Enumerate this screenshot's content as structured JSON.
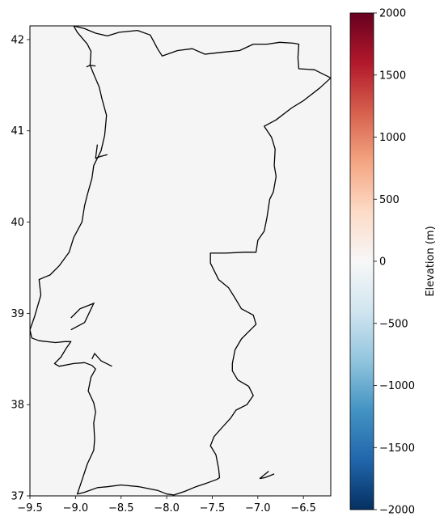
{
  "map": {
    "type": "geographic-outline",
    "background_color": "#f5f5f5",
    "outline_color": "#000000",
    "xlim": [
      -9.5,
      -6.2
    ],
    "ylim": [
      37.0,
      42.15
    ],
    "x_ticks": [
      -9.5,
      -9.0,
      -8.5,
      -8.0,
      -7.5,
      -7.0,
      -6.5
    ],
    "x_tick_labels": [
      "−9.5",
      "−9.0",
      "−8.5",
      "−8.0",
      "−7.5",
      "−7.0",
      "−6.5"
    ],
    "y_ticks": [
      37,
      38,
      39,
      40,
      41,
      42
    ],
    "y_tick_labels": [
      "37",
      "38",
      "39",
      "40",
      "41",
      "42"
    ],
    "coastline_border": [
      [
        -9.02,
        42.15
      ],
      [
        -8.98,
        42.08
      ],
      [
        -8.87,
        41.95
      ],
      [
        -8.83,
        41.87
      ],
      [
        -8.84,
        41.72
      ],
      [
        -8.8,
        41.62
      ],
      [
        -8.74,
        41.48
      ],
      [
        -8.71,
        41.35
      ],
      [
        -8.66,
        41.17
      ],
      [
        -8.67,
        41.06
      ],
      [
        -8.68,
        40.95
      ],
      [
        -8.72,
        40.78
      ],
      [
        -8.8,
        40.62
      ],
      [
        -8.82,
        40.48
      ],
      [
        -8.87,
        40.3
      ],
      [
        -8.9,
        40.18
      ],
      [
        -8.93,
        40.0
      ],
      [
        -9.02,
        39.83
      ],
      [
        -9.07,
        39.67
      ],
      [
        -9.18,
        39.52
      ],
      [
        -9.28,
        39.42
      ],
      [
        -9.33,
        39.4
      ],
      [
        -9.4,
        39.37
      ],
      [
        -9.38,
        39.2
      ],
      [
        -9.45,
        38.96
      ],
      [
        -9.5,
        38.82
      ],
      [
        -9.48,
        38.73
      ],
      [
        -9.4,
        38.7
      ],
      [
        -9.22,
        38.68
      ],
      [
        -9.12,
        38.69
      ],
      [
        -9.05,
        38.69
      ],
      [
        -9.1,
        38.62
      ],
      [
        -9.16,
        38.52
      ],
      [
        -9.23,
        38.45
      ],
      [
        -9.18,
        38.42
      ],
      [
        -9.02,
        38.45
      ],
      [
        -8.9,
        38.46
      ],
      [
        -8.82,
        38.43
      ],
      [
        -8.78,
        38.39
      ],
      [
        -8.83,
        38.3
      ],
      [
        -8.86,
        38.15
      ],
      [
        -8.8,
        38.02
      ],
      [
        -8.78,
        37.92
      ],
      [
        -8.8,
        37.8
      ],
      [
        -8.79,
        37.62
      ],
      [
        -8.8,
        37.5
      ],
      [
        -8.87,
        37.35
      ],
      [
        -8.92,
        37.2
      ],
      [
        -8.98,
        37.02
      ],
      [
        -8.9,
        37.04
      ],
      [
        -8.76,
        37.09
      ],
      [
        -8.65,
        37.1
      ],
      [
        -8.5,
        37.12
      ],
      [
        -8.3,
        37.1
      ],
      [
        -8.1,
        37.06
      ],
      [
        -8.0,
        37.02
      ],
      [
        -7.92,
        37.01
      ],
      [
        -7.8,
        37.05
      ],
      [
        -7.68,
        37.1
      ],
      [
        -7.56,
        37.14
      ],
      [
        -7.45,
        37.18
      ],
      [
        -7.42,
        37.2
      ],
      [
        -7.43,
        37.3
      ],
      [
        -7.46,
        37.45
      ],
      [
        -7.52,
        37.55
      ],
      [
        -7.48,
        37.65
      ],
      [
        -7.4,
        37.74
      ],
      [
        -7.3,
        37.85
      ],
      [
        -7.24,
        37.94
      ],
      [
        -7.12,
        38.0
      ],
      [
        -7.05,
        38.1
      ],
      [
        -7.1,
        38.2
      ],
      [
        -7.22,
        38.27
      ],
      [
        -7.28,
        38.37
      ],
      [
        -7.28,
        38.45
      ],
      [
        -7.25,
        38.6
      ],
      [
        -7.18,
        38.72
      ],
      [
        -7.1,
        38.8
      ],
      [
        -7.02,
        38.88
      ],
      [
        -7.05,
        38.98
      ],
      [
        -7.18,
        39.05
      ],
      [
        -7.24,
        39.15
      ],
      [
        -7.32,
        39.28
      ],
      [
        -7.43,
        39.37
      ],
      [
        -7.52,
        39.55
      ],
      [
        -7.52,
        39.66
      ],
      [
        -7.35,
        39.66
      ],
      [
        -7.15,
        39.67
      ],
      [
        -7.02,
        39.67
      ],
      [
        -7.0,
        39.8
      ],
      [
        -6.93,
        39.9
      ],
      [
        -6.9,
        40.05
      ],
      [
        -6.87,
        40.25
      ],
      [
        -6.83,
        40.33
      ],
      [
        -6.8,
        40.5
      ],
      [
        -6.82,
        40.62
      ],
      [
        -6.81,
        40.8
      ],
      [
        -6.85,
        40.93
      ],
      [
        -6.93,
        41.05
      ],
      [
        -6.8,
        41.12
      ],
      [
        -6.63,
        41.25
      ],
      [
        -6.5,
        41.33
      ],
      [
        -6.32,
        41.47
      ],
      [
        -6.2,
        41.58
      ],
      [
        -6.38,
        41.67
      ],
      [
        -6.55,
        41.68
      ],
      [
        -6.56,
        41.8
      ],
      [
        -6.55,
        41.95
      ],
      [
        -6.61,
        41.96
      ],
      [
        -6.76,
        41.97
      ],
      [
        -6.9,
        41.95
      ],
      [
        -7.05,
        41.95
      ],
      [
        -7.2,
        41.88
      ],
      [
        -7.4,
        41.86
      ],
      [
        -7.58,
        41.84
      ],
      [
        -7.72,
        41.9
      ],
      [
        -7.88,
        41.88
      ],
      [
        -8.05,
        41.82
      ],
      [
        -8.1,
        41.9
      ],
      [
        -8.18,
        42.05
      ],
      [
        -8.32,
        42.1
      ],
      [
        -8.52,
        42.08
      ],
      [
        -8.65,
        42.04
      ],
      [
        -8.78,
        42.07
      ],
      [
        -8.9,
        42.12
      ],
      [
        -9.02,
        42.15
      ]
    ],
    "islands": [
      [
        [
          -8.88,
          41.7
        ],
        [
          -8.84,
          41.72
        ],
        [
          -8.78,
          41.71
        ]
      ],
      [
        [
          -8.76,
          40.85
        ],
        [
          -8.78,
          40.7
        ],
        [
          -8.72,
          40.72
        ],
        [
          -8.65,
          40.74
        ]
      ],
      [
        [
          -9.05,
          38.95
        ],
        [
          -8.95,
          39.05
        ],
        [
          -8.8,
          39.11
        ],
        [
          -8.9,
          38.9
        ],
        [
          -9.05,
          38.82
        ]
      ],
      [
        [
          -8.82,
          38.5
        ],
        [
          -8.79,
          38.56
        ],
        [
          -8.72,
          38.48
        ],
        [
          -8.6,
          38.42
        ]
      ],
      [
        [
          -6.88,
          37.27
        ],
        [
          -6.98,
          37.19
        ],
        [
          -6.92,
          37.2
        ],
        [
          -6.82,
          37.24
        ]
      ]
    ]
  },
  "colorbar": {
    "label": "Elevation (m)",
    "colormap": "RdBu_r",
    "vmin": -2000,
    "vmax": 2000,
    "ticks": [
      2000,
      1500,
      1000,
      500,
      0,
      -500,
      -1000,
      -1500,
      -2000
    ],
    "tick_labels": [
      "2000",
      "1500",
      "1000",
      "500",
      "0",
      "−500",
      "−1000",
      "−1500",
      "−2000"
    ],
    "stops": [
      "#053061",
      "#2166ac",
      "#4393c3",
      "#92c5de",
      "#d1e5f0",
      "#f7f7f7",
      "#fddbc7",
      "#f4a582",
      "#d6604d",
      "#b2182b",
      "#67001f"
    ]
  }
}
